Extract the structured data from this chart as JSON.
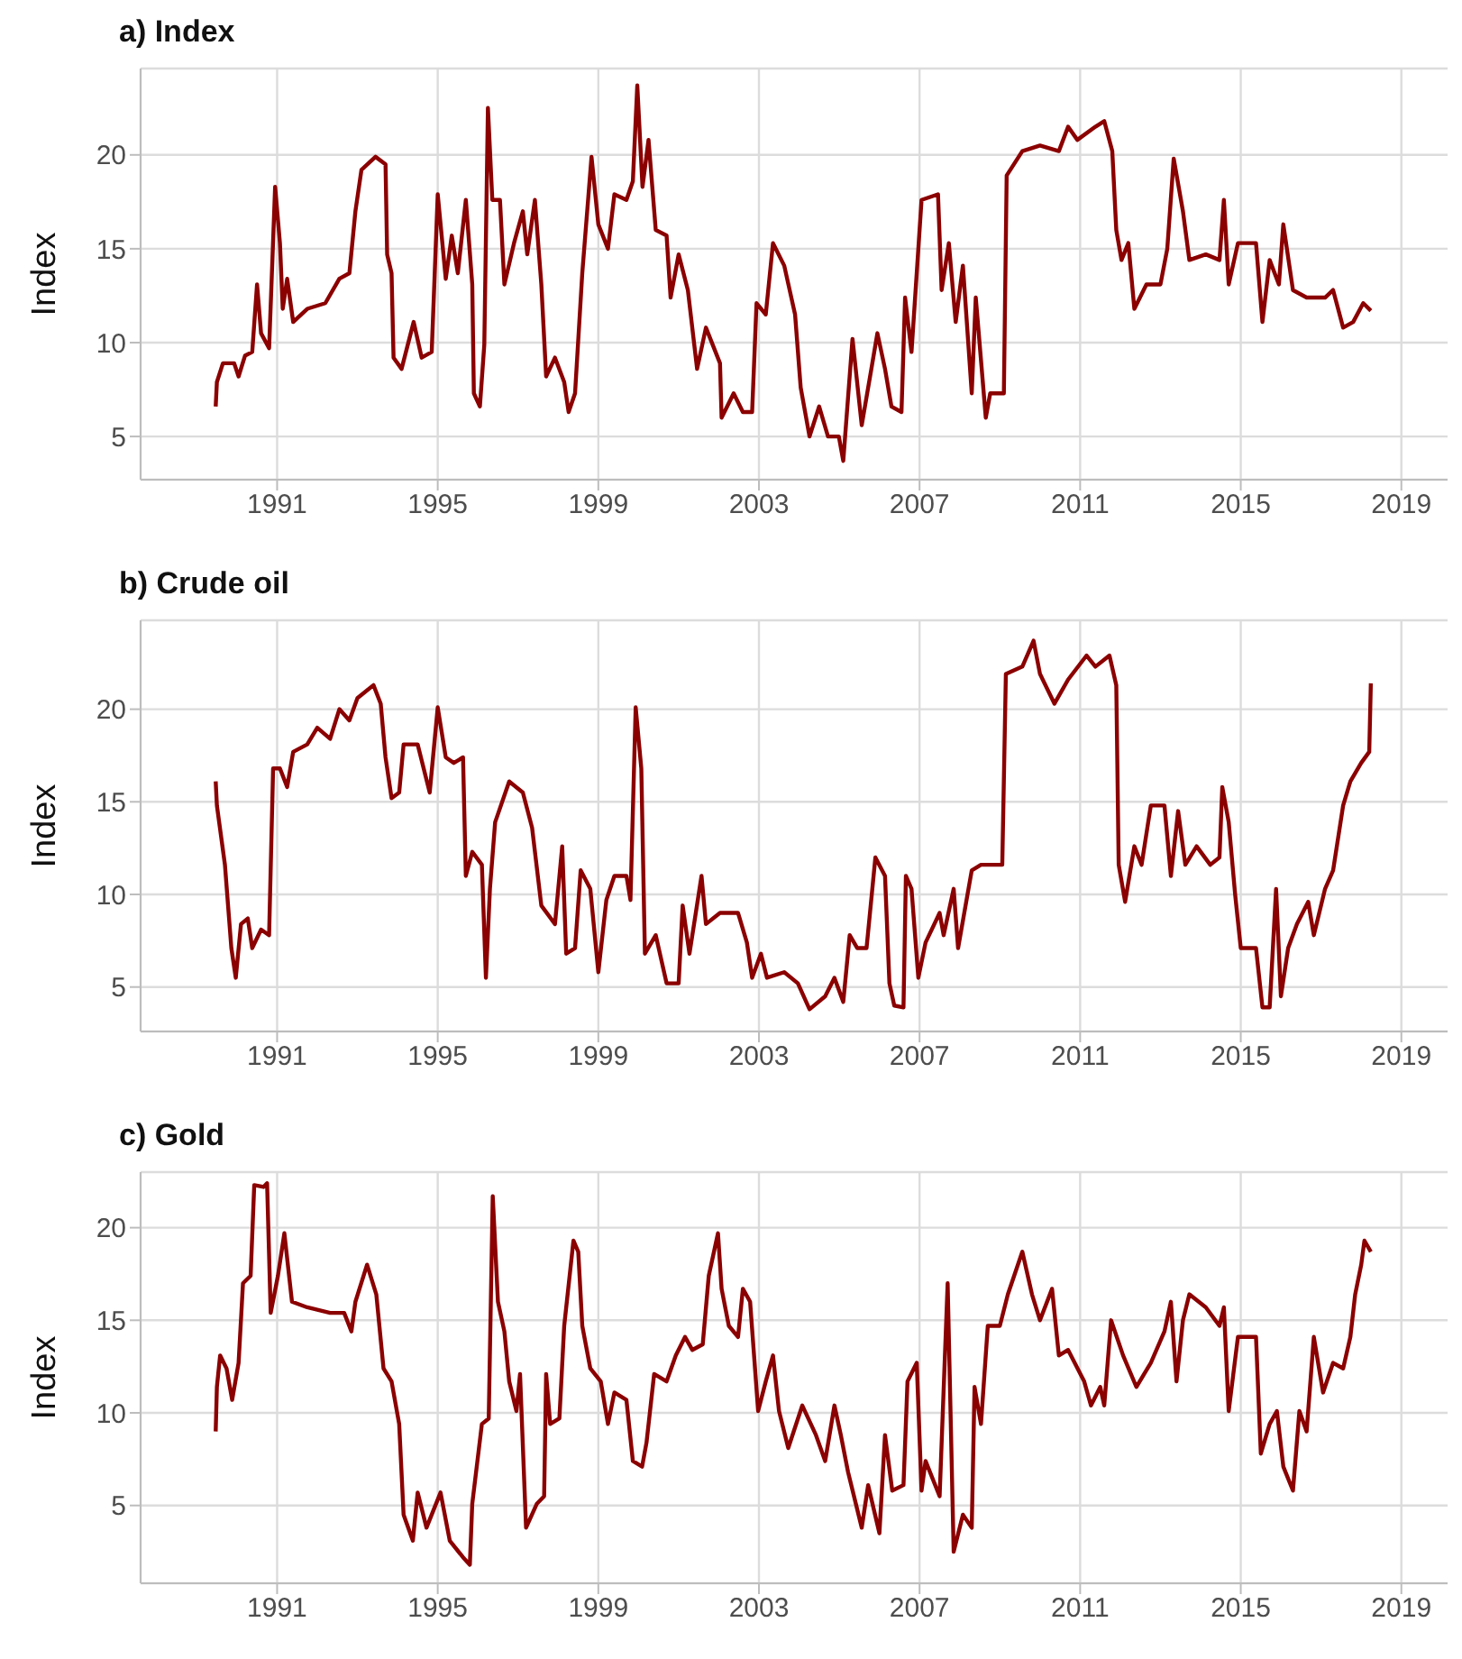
{
  "chart_data": [
    {
      "type": "line",
      "title": "a) Index",
      "ylabel": "Index",
      "xlim": [
        1987.6,
        2020.6
      ],
      "xticks": [
        1991,
        1995,
        1999,
        2003,
        2007,
        2011,
        2015,
        2019
      ],
      "ylim": [
        2.7,
        24.6
      ],
      "yticks": [
        5,
        10,
        15,
        20
      ],
      "grid": true,
      "legend": false,
      "x": [
        1989.47,
        1989.5,
        1989.65,
        1989.93,
        1990.04,
        1990.2,
        1990.38,
        1990.5,
        1990.6,
        1990.8,
        1990.95,
        1991.07,
        1991.14,
        1991.25,
        1991.4,
        1991.75,
        1992.2,
        1992.55,
        1992.8,
        1992.95,
        1993.1,
        1993.45,
        1993.7,
        1993.74,
        1993.85,
        1993.9,
        1994.1,
        1994.4,
        1994.6,
        1994.85,
        1995.0,
        1995.2,
        1995.35,
        1995.5,
        1995.7,
        1995.86,
        1995.9,
        1996.05,
        1996.16,
        1996.25,
        1996.36,
        1996.55,
        1996.66,
        1996.9,
        1997.12,
        1997.23,
        1997.42,
        1997.58,
        1997.7,
        1997.92,
        1998.15,
        1998.26,
        1998.42,
        1998.6,
        1998.83,
        1999.0,
        1999.24,
        1999.4,
        1999.7,
        1999.86,
        1999.97,
        2000.1,
        2000.25,
        2000.43,
        2000.7,
        2000.8,
        2001.0,
        2001.23,
        2001.46,
        2001.68,
        2002.03,
        2002.07,
        2002.37,
        2002.6,
        2002.83,
        2002.94,
        2003.17,
        2003.35,
        2003.63,
        2003.9,
        2004.04,
        2004.26,
        2004.5,
        2004.72,
        2004.99,
        2005.1,
        2005.33,
        2005.56,
        2005.8,
        2005.95,
        2006.14,
        2006.3,
        2006.55,
        2006.64,
        2006.8,
        2007.05,
        2007.46,
        2007.55,
        2007.73,
        2007.9,
        2008.08,
        2008.3,
        2008.4,
        2008.65,
        2008.76,
        2009.1,
        2009.17,
        2009.56,
        2010.0,
        2010.47,
        2010.7,
        2010.93,
        2011.38,
        2011.6,
        2011.8,
        2011.9,
        2012.03,
        2012.2,
        2012.35,
        2012.65,
        2013.0,
        2013.17,
        2013.33,
        2013.56,
        2013.72,
        2014.13,
        2014.47,
        2014.58,
        2014.7,
        2014.93,
        2015.38,
        2015.54,
        2015.72,
        2015.95,
        2016.06,
        2016.3,
        2016.64,
        2017.1,
        2017.3,
        2017.55,
        2017.8,
        2018.05,
        2018.24
      ],
      "series": [
        {
          "color": "#8b0000",
          "values": [
            6.6,
            7.9,
            8.9,
            8.9,
            8.2,
            9.3,
            9.5,
            13.1,
            10.5,
            9.7,
            18.3,
            15.3,
            11.8,
            13.4,
            11.1,
            11.8,
            12.1,
            13.4,
            13.7,
            17,
            19.2,
            19.9,
            19.5,
            14.7,
            13.7,
            9.2,
            8.6,
            11.1,
            9.2,
            9.5,
            17.9,
            13.4,
            15.7,
            13.7,
            17.6,
            13.1,
            7.3,
            6.6,
            9.9,
            22.5,
            17.6,
            17.6,
            13.1,
            15.3,
            17,
            14.7,
            17.6,
            13.1,
            8.2,
            9.2,
            7.9,
            6.3,
            7.3,
            13.7,
            19.9,
            16.3,
            15,
            17.9,
            17.6,
            18.6,
            23.7,
            18.3,
            20.8,
            16,
            15.7,
            12.4,
            14.7,
            12.8,
            8.6,
            10.8,
            8.9,
            6,
            7.3,
            6.3,
            6.3,
            12.1,
            11.5,
            15.3,
            14.1,
            11.5,
            7.6,
            5,
            6.6,
            5,
            5,
            3.7,
            10.2,
            5.6,
            8.6,
            10.5,
            8.6,
            6.6,
            6.3,
            12.4,
            9.5,
            17.6,
            17.9,
            12.8,
            15.3,
            11.1,
            14.1,
            7.3,
            12.4,
            6,
            7.3,
            7.3,
            18.9,
            20.2,
            20.5,
            20.2,
            21.5,
            20.8,
            21.5,
            21.8,
            20.2,
            16,
            14.4,
            15.3,
            11.8,
            13.1,
            13.1,
            15,
            19.8,
            17,
            14.4,
            14.7,
            14.4,
            17.6,
            13.1,
            15.3,
            15.3,
            11.1,
            14.4,
            13.1,
            16.3,
            12.8,
            12.4,
            12.4,
            12.8,
            10.8,
            11.1,
            12.1,
            11.7
          ]
        }
      ]
    },
    {
      "type": "line",
      "title": "b) Crude oil",
      "ylabel": "Index",
      "xlim": [
        1987.6,
        2020.6
      ],
      "xticks": [
        1991,
        1995,
        1999,
        2003,
        2007,
        2011,
        2015,
        2019
      ],
      "ylim": [
        2.6,
        24.8
      ],
      "yticks": [
        5,
        10,
        15,
        20
      ],
      "grid": true,
      "legend": false,
      "x": [
        1989.47,
        1989.5,
        1989.7,
        1989.86,
        1989.97,
        1990.1,
        1990.27,
        1990.38,
        1990.6,
        1990.8,
        1990.9,
        1991.07,
        1991.25,
        1991.4,
        1991.75,
        1992.0,
        1992.32,
        1992.55,
        1992.8,
        1993.0,
        1993.4,
        1993.58,
        1993.7,
        1993.85,
        1994.04,
        1994.15,
        1994.5,
        1994.8,
        1995.0,
        1995.2,
        1995.4,
        1995.63,
        1995.7,
        1995.86,
        1996.1,
        1996.2,
        1996.3,
        1996.43,
        1996.78,
        1997.12,
        1997.35,
        1997.58,
        1997.92,
        1998.1,
        1998.2,
        1998.42,
        1998.56,
        1998.8,
        1999.0,
        1999.2,
        1999.4,
        1999.7,
        1999.8,
        1999.93,
        2000.07,
        2000.16,
        2000.43,
        2000.7,
        2001.0,
        2001.1,
        2001.27,
        2001.57,
        2001.68,
        2002.03,
        2002.48,
        2002.7,
        2002.83,
        2003.05,
        2003.2,
        2003.63,
        2003.97,
        2004.26,
        2004.65,
        2004.88,
        2005.1,
        2005.26,
        2005.45,
        2005.68,
        2005.9,
        2006.14,
        2006.25,
        2006.37,
        2006.6,
        2006.66,
        2006.8,
        2006.97,
        2007.15,
        2007.5,
        2007.6,
        2007.85,
        2007.96,
        2008.3,
        2008.53,
        2009.06,
        2009.15,
        2009.56,
        2009.84,
        2010.0,
        2010.36,
        2010.7,
        2011.16,
        2011.38,
        2011.73,
        2011.9,
        2011.96,
        2012.12,
        2012.35,
        2012.53,
        2012.76,
        2013.1,
        2013.26,
        2013.44,
        2013.62,
        2013.9,
        2014.24,
        2014.47,
        2014.54,
        2014.7,
        2014.86,
        2015.0,
        2015.38,
        2015.54,
        2015.72,
        2015.88,
        2016.0,
        2016.18,
        2016.4,
        2016.68,
        2016.82,
        2017.1,
        2017.3,
        2017.55,
        2017.73,
        2018.0,
        2018.2,
        2018.24
      ],
      "series": [
        {
          "color": "#8b0000",
          "values": [
            16.1,
            14.8,
            11.6,
            7.1,
            5.5,
            8.4,
            8.7,
            7.1,
            8.1,
            7.8,
            16.8,
            16.8,
            15.8,
            17.7,
            18.1,
            19,
            18.4,
            20,
            19.4,
            20.6,
            21.3,
            20.3,
            17.4,
            15.2,
            15.5,
            18.1,
            18.1,
            15.5,
            20.1,
            17.4,
            17.1,
            17.4,
            11,
            12.3,
            11.6,
            5.5,
            10.3,
            13.9,
            16.1,
            15.5,
            13.6,
            9.4,
            8.4,
            12.6,
            6.8,
            7.1,
            11.3,
            10.3,
            5.8,
            9.7,
            11,
            11,
            9.7,
            20.1,
            16.8,
            6.8,
            7.8,
            5.2,
            5.2,
            9.4,
            6.8,
            11,
            8.4,
            9,
            9,
            7.4,
            5.5,
            6.8,
            5.5,
            5.8,
            5.2,
            3.8,
            4.5,
            5.5,
            4.2,
            7.8,
            7.1,
            7.1,
            12,
            11,
            5.2,
            4,
            3.9,
            11,
            10.3,
            5.5,
            7.4,
            9,
            7.8,
            10.3,
            7.1,
            11.3,
            11.6,
            11.6,
            21.9,
            22.3,
            23.7,
            21.9,
            20.3,
            21.6,
            22.9,
            22.3,
            22.9,
            21.3,
            11.6,
            9.6,
            12.6,
            11.6,
            14.8,
            14.8,
            11,
            14.5,
            11.6,
            12.6,
            11.6,
            12,
            15.8,
            13.9,
            10,
            7.1,
            7.1,
            3.9,
            3.9,
            10.3,
            4.5,
            7.1,
            8.4,
            9.6,
            7.8,
            10.3,
            11.3,
            14.8,
            16.1,
            17.1,
            17.7,
            21.4
          ]
        }
      ]
    },
    {
      "type": "line",
      "title": "c) Gold",
      "ylabel": "Index",
      "xlim": [
        1987.6,
        2020.6
      ],
      "xticks": [
        1991,
        1995,
        1999,
        2003,
        2007,
        2011,
        2015,
        2019
      ],
      "ylim": [
        0.8,
        23
      ],
      "yticks": [
        5,
        10,
        15,
        20
      ],
      "grid": true,
      "legend": false,
      "x": [
        1989.47,
        1989.5,
        1989.58,
        1989.74,
        1989.88,
        1990.04,
        1990.15,
        1990.34,
        1990.43,
        1990.66,
        1990.75,
        1990.84,
        1991.02,
        1991.18,
        1991.37,
        1991.75,
        1992.32,
        1992.67,
        1992.85,
        1992.95,
        1993.24,
        1993.47,
        1993.65,
        1993.85,
        1994.04,
        1994.15,
        1994.38,
        1994.5,
        1994.72,
        1995.07,
        1995.3,
        1995.63,
        1995.8,
        1995.86,
        1996.1,
        1996.27,
        1996.37,
        1996.5,
        1996.66,
        1996.78,
        1996.96,
        1997.05,
        1997.2,
        1997.47,
        1997.65,
        1997.7,
        1997.8,
        1998.03,
        1998.15,
        1998.38,
        1998.5,
        1998.6,
        1998.8,
        1999.06,
        1999.24,
        1999.4,
        1999.7,
        1999.86,
        2000.09,
        2000.2,
        2000.39,
        2000.7,
        2000.93,
        2001.16,
        2001.34,
        2001.6,
        2001.75,
        2001.98,
        2002.07,
        2002.25,
        2002.48,
        2002.6,
        2002.78,
        2002.98,
        2003.17,
        2003.35,
        2003.5,
        2003.73,
        2004.08,
        2004.42,
        2004.65,
        2004.88,
        2005.04,
        2005.22,
        2005.56,
        2005.72,
        2006.0,
        2006.14,
        2006.32,
        2006.6,
        2006.7,
        2006.93,
        2007.05,
        2007.15,
        2007.5,
        2007.7,
        2007.85,
        2008.08,
        2008.3,
        2008.37,
        2008.53,
        2008.7,
        2009.0,
        2009.2,
        2009.56,
        2009.8,
        2010.0,
        2010.3,
        2010.47,
        2010.7,
        2011.1,
        2011.27,
        2011.5,
        2011.6,
        2011.77,
        2012.07,
        2012.4,
        2012.76,
        2013.1,
        2013.26,
        2013.4,
        2013.56,
        2013.72,
        2014.13,
        2014.47,
        2014.58,
        2014.7,
        2014.93,
        2015.38,
        2015.5,
        2015.72,
        2015.9,
        2016.06,
        2016.3,
        2016.46,
        2016.64,
        2016.82,
        2017.05,
        2017.3,
        2017.55,
        2017.73,
        2017.85,
        2018.0,
        2018.08,
        2018.24
      ],
      "series": [
        {
          "color": "#8b0000",
          "values": [
            9,
            11.4,
            13.1,
            12.4,
            10.7,
            12.7,
            17,
            17.4,
            22.3,
            22.2,
            22.4,
            15.4,
            17.4,
            19.7,
            16,
            15.7,
            15.4,
            15.4,
            14.4,
            16,
            18,
            16.4,
            12.4,
            11.7,
            9.4,
            4.5,
            3.1,
            5.7,
            3.8,
            5.7,
            3.1,
            2.2,
            1.8,
            5.1,
            9.4,
            9.7,
            21.7,
            16,
            14.4,
            11.7,
            10.1,
            12.1,
            3.8,
            5.1,
            5.5,
            12.1,
            9.4,
            9.7,
            14.7,
            19.3,
            18.7,
            14.7,
            12.4,
            11.7,
            9.4,
            11.1,
            10.7,
            7.4,
            7.1,
            8.4,
            12.1,
            11.7,
            13.1,
            14.1,
            13.4,
            13.7,
            17.4,
            19.7,
            16.7,
            14.7,
            14.1,
            16.7,
            16,
            10.1,
            11.7,
            13.1,
            10.1,
            8.1,
            10.4,
            8.8,
            7.4,
            10.4,
            8.8,
            6.8,
            3.8,
            6.1,
            3.5,
            8.8,
            5.8,
            6.1,
            11.7,
            12.7,
            5.8,
            7.4,
            5.5,
            17,
            2.5,
            4.5,
            3.8,
            11.4,
            9.4,
            14.7,
            14.7,
            16.4,
            18.7,
            16.4,
            15,
            16.7,
            13.1,
            13.4,
            11.7,
            10.4,
            11.4,
            10.4,
            15,
            13.1,
            11.4,
            12.7,
            14.4,
            16,
            11.7,
            15,
            16.4,
            15.7,
            14.7,
            15.7,
            10.1,
            14.1,
            14.1,
            7.8,
            9.4,
            10.1,
            7.1,
            5.8,
            10.1,
            9,
            14.1,
            11.1,
            12.7,
            12.4,
            14.1,
            16.4,
            18,
            19.3,
            18.7
          ]
        }
      ]
    }
  ]
}
